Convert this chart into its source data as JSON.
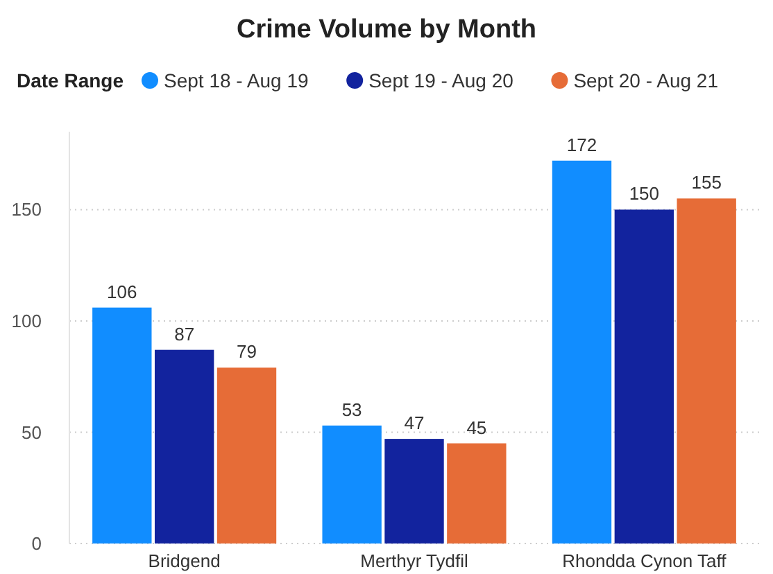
{
  "chart_data": {
    "type": "bar",
    "title": "Crime Volume by Month",
    "legend_title": "Date Range",
    "categories": [
      "Bridgend",
      "Merthyr Tydfil",
      "Rhondda Cynon Taff"
    ],
    "series": [
      {
        "name": "Sept 18 - Aug 19",
        "color": "#118dff",
        "values": [
          106,
          53,
          172
        ]
      },
      {
        "name": "Sept 19 - Aug 20",
        "color": "#12239e",
        "values": [
          87,
          47,
          150
        ]
      },
      {
        "name": "Sept 20 - Aug 21",
        "color": "#e66c37",
        "values": [
          79,
          45,
          155
        ]
      }
    ],
    "ylim": [
      0,
      185
    ],
    "yticks": [
      0,
      50,
      100,
      150
    ],
    "grid": "y",
    "legend": "top left",
    "data_labels": true
  }
}
